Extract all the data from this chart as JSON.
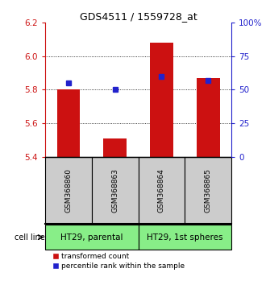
{
  "title": "GDS4511 / 1559728_at",
  "samples": [
    "GSM368860",
    "GSM368863",
    "GSM368864",
    "GSM368865"
  ],
  "red_values": [
    5.8,
    5.51,
    6.08,
    5.87
  ],
  "blue_values": [
    55,
    50,
    60,
    57
  ],
  "ylim_left": [
    5.4,
    6.2
  ],
  "ylim_right": [
    0,
    100
  ],
  "yticks_left": [
    5.4,
    5.6,
    5.8,
    6.0,
    6.2
  ],
  "yticks_right": [
    0,
    25,
    50,
    75,
    100
  ],
  "ytick_labels_right": [
    "0",
    "25",
    "50",
    "75",
    "100%"
  ],
  "grid_values": [
    5.6,
    5.8,
    6.0
  ],
  "bar_width": 0.5,
  "red_color": "#cc1111",
  "blue_color": "#2222cc",
  "cell_groups": [
    {
      "label": "HT29, parental",
      "color": "#88ee88"
    },
    {
      "label": "HT29, 1st spheres",
      "color": "#88ee88"
    }
  ],
  "cell_line_label": "cell line",
  "legend_red": "transformed count",
  "legend_blue": "percentile rank within the sample",
  "left_tick_color": "#cc1111",
  "right_tick_color": "#2222cc",
  "sample_box_color": "#cccccc",
  "base_value": 5.4
}
